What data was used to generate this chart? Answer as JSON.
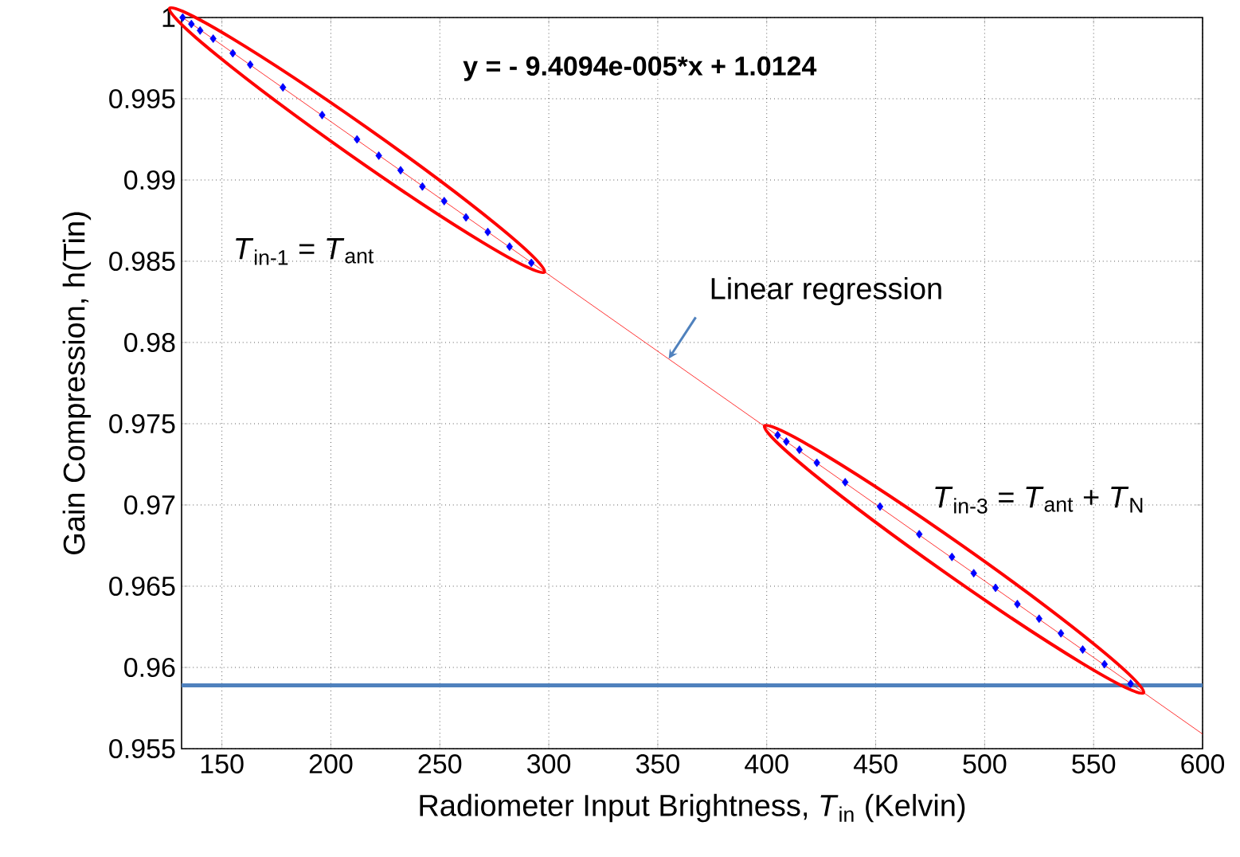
{
  "chart_data": {
    "type": "scatter",
    "xlabel": "Radiometer Input Brightness, *T*$_{in}$ (Kelvin)",
    "ylabel": "Gain Compression, h(Tin)",
    "xlim": [
      131.5,
      600
    ],
    "ylim": [
      0.955,
      1
    ],
    "xticks": [
      150,
      200,
      250,
      300,
      350,
      400,
      450,
      500,
      550,
      600
    ],
    "yticks": [
      0.955,
      0.96,
      0.965,
      0.97,
      0.975,
      0.98,
      0.985,
      0.99,
      0.995,
      1
    ],
    "grid": true,
    "marker": "diamond",
    "series": [
      {
        "color": "#0000ff",
        "x": [
          132,
          136,
          140,
          146,
          155,
          163,
          178,
          196,
          212,
          222,
          232,
          242,
          252,
          262,
          272,
          282,
          292
        ],
        "values": [
          1.0,
          0.9996,
          0.9992,
          0.9987,
          0.9978,
          0.9971,
          0.9957,
          0.994,
          0.9925,
          0.9915,
          0.9906,
          0.9896,
          0.9887,
          0.9877,
          0.9868,
          0.9859,
          0.9849
        ]
      },
      {
        "color": "#0000ff",
        "x": [
          405,
          409,
          415,
          423,
          436,
          452,
          470,
          485,
          495,
          505,
          515,
          525,
          535,
          545,
          555,
          567
        ],
        "values": [
          0.9743,
          0.9739,
          0.9734,
          0.9726,
          0.9714,
          0.9699,
          0.9682,
          0.9668,
          0.9658,
          0.9649,
          0.9639,
          0.963,
          0.9621,
          0.9611,
          0.9602,
          0.959
        ]
      },
      {
        "type": "line",
        "color": "#ff0000",
        "marker": "none",
        "x": [
          132,
          600
        ],
        "values": [
          1.0,
          0.9559
        ]
      }
    ],
    "ref_lines": [
      {
        "axis": "y",
        "value": 0.9589,
        "color": "#4f81bd"
      }
    ],
    "annotations": [
      "y = - 9.4094e-005*x + 1.0124",
      "*T*$_{in-1}$ = *T*$_{ant}$",
      "*T*$_{in-3}$ = *T*$_{ant}$ + *T*$_{N}$",
      {
        "text": "Linear regression",
        "x": 355,
        "y": 0.979
      }
    ]
  }
}
